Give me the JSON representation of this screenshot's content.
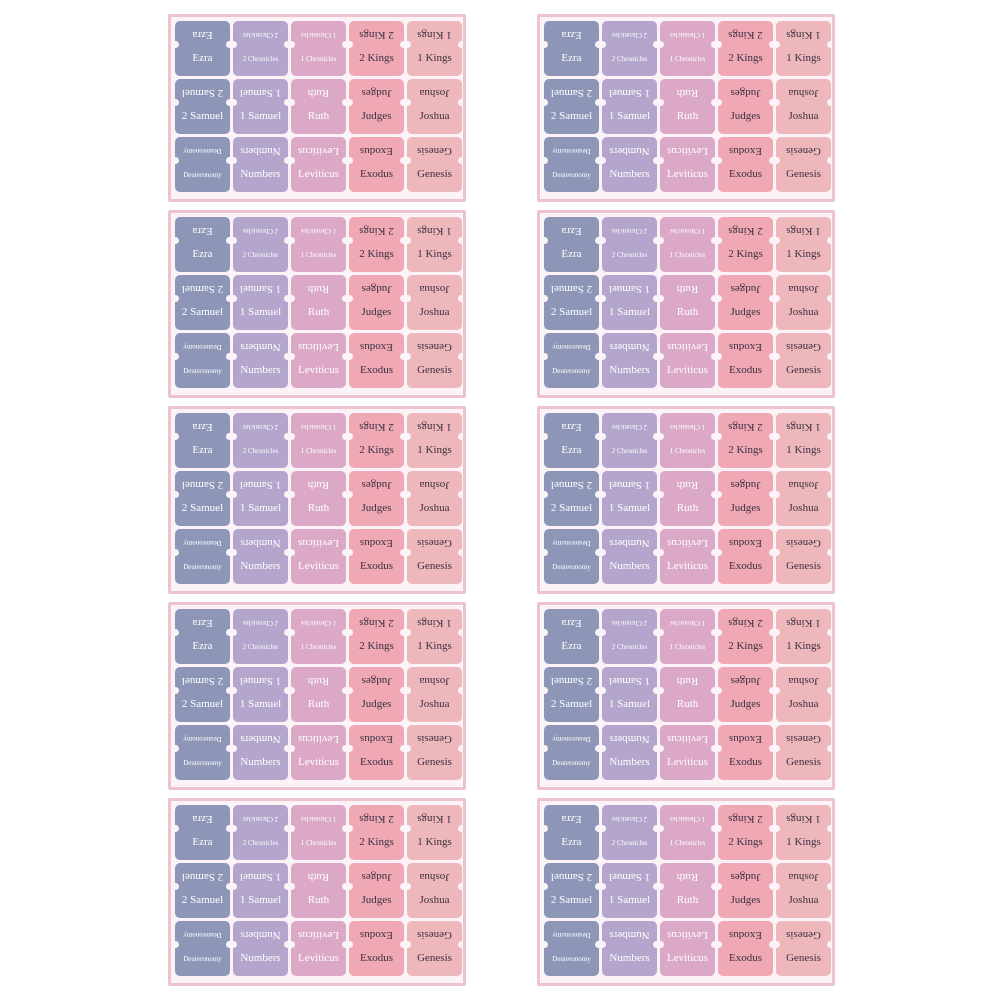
{
  "colors": {
    "sheet_border": "#eec3cc",
    "sheet_background": "#fbf3f7",
    "column_colors": [
      "#8e96b8",
      "#b3a5cb",
      "#dba9c7",
      "#efa8b4",
      "#eeb7bc"
    ]
  },
  "sheet_count": 10,
  "rows": [
    [
      {
        "label": "Ezra",
        "tone": "light"
      },
      {
        "label": "2 Chronicles",
        "tone": "light",
        "small": true
      },
      {
        "label": "1 Chronicles",
        "tone": "light",
        "small": true
      },
      {
        "label": "2 Kings",
        "tone": "dark"
      },
      {
        "label": "1 Kings",
        "tone": "dark"
      }
    ],
    [
      {
        "label": "2 Samuel",
        "tone": "light"
      },
      {
        "label": "1 Samuel",
        "tone": "light"
      },
      {
        "label": "Ruth",
        "tone": "light"
      },
      {
        "label": "Judges",
        "tone": "dark"
      },
      {
        "label": "Joshua",
        "tone": "dark"
      }
    ],
    [
      {
        "label": "Deuteronomy",
        "tone": "light",
        "small": true
      },
      {
        "label": "Numbers",
        "tone": "light"
      },
      {
        "label": "Leviticus",
        "tone": "light"
      },
      {
        "label": "Exodus",
        "tone": "dark"
      },
      {
        "label": "Genesis",
        "tone": "dark"
      }
    ]
  ]
}
